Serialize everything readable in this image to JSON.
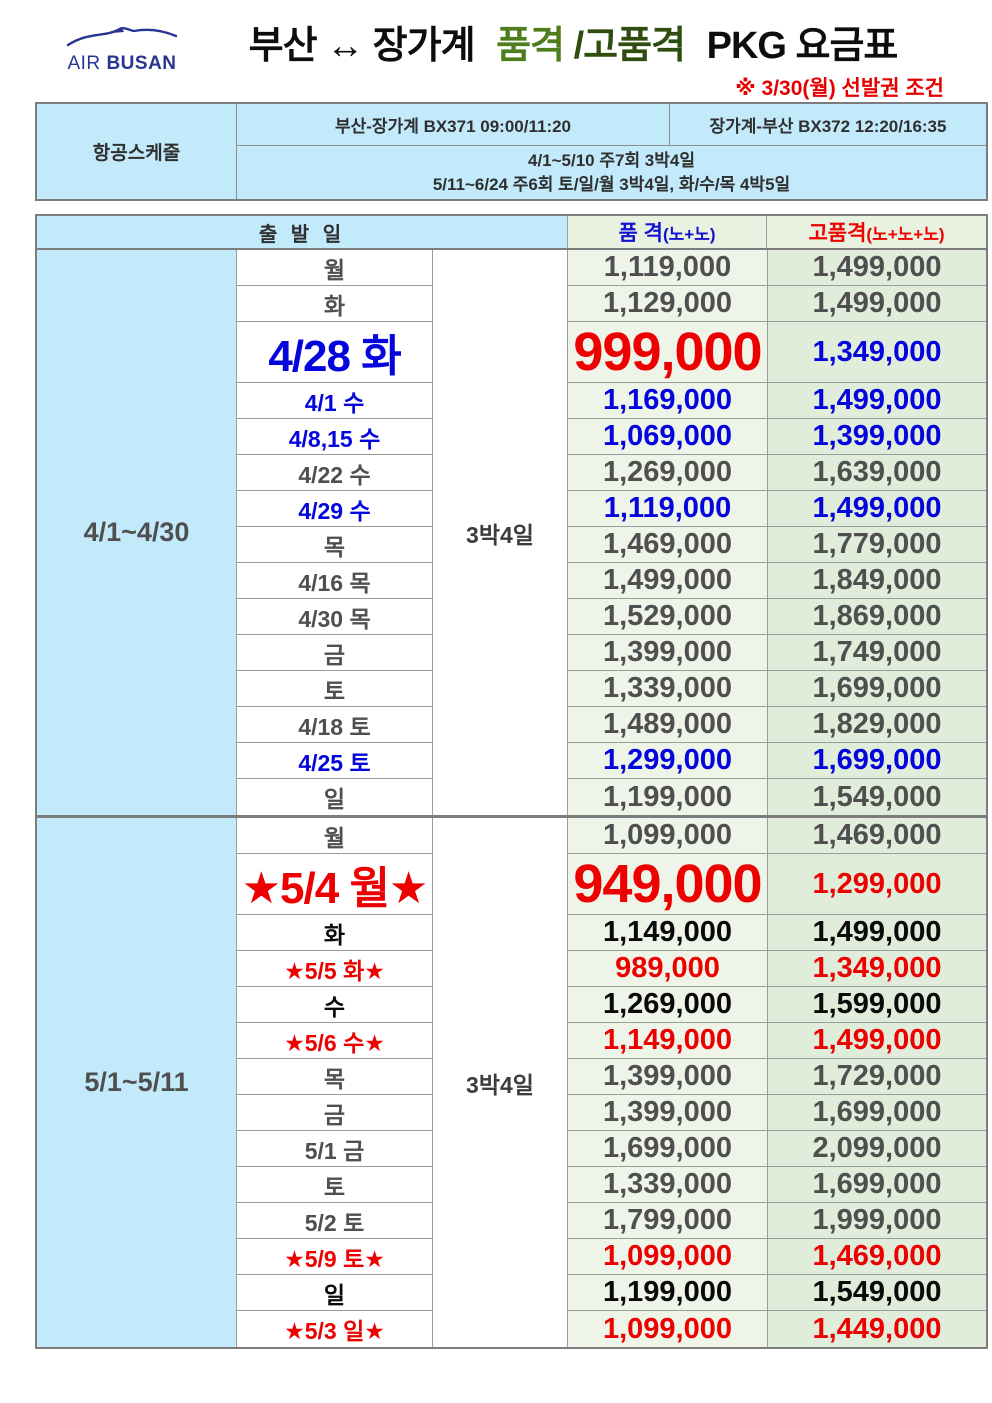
{
  "header": {
    "logo_air": "AIR",
    "logo_busan": "BUSAN",
    "title_city": "부산 ↔ 장가계",
    "title_green": "품격",
    "title_dark": "/고품격",
    "title_tail": "PKG 요금표",
    "note": "※ 3/30(월) 선발권 조건"
  },
  "schedule": {
    "label": "항공스케줄",
    "outbound": "부산-장가계 BX371 09:00/11:20",
    "inbound": "장가계-부산 BX372 12:20/16:35",
    "line1": "4/1~5/10 주7회 3박4일",
    "line2": "5/11~6/24 주6회 토/일/월 3박4일, 화/수/목 4박5일"
  },
  "table": {
    "headers": {
      "departure": "출 발 일",
      "standard_main": "품 격",
      "standard_sub": "(노+노)",
      "premium_main": "고품격",
      "premium_sub": "(노+노+노)"
    },
    "sections": [
      {
        "period": "4/1~4/30",
        "duration": "3박4일",
        "rows": [
          {
            "day": "월",
            "standard": "1,119,000",
            "premium": "1,499,000",
            "style": "gray"
          },
          {
            "day": "화",
            "standard": "1,129,000",
            "premium": "1,499,000",
            "style": "gray"
          },
          {
            "day": "4/28 화",
            "standard": "999,000",
            "premium": "1,349,000",
            "style": "blue",
            "standard_style": "red",
            "big": true
          },
          {
            "day": "4/1 수",
            "standard": "1,169,000",
            "premium": "1,499,000",
            "style": "blue"
          },
          {
            "day": "4/8,15 수",
            "standard": "1,069,000",
            "premium": "1,399,000",
            "style": "blue"
          },
          {
            "day": "4/22 수",
            "standard": "1,269,000",
            "premium": "1,639,000",
            "style": "gray"
          },
          {
            "day": "4/29 수",
            "standard": "1,119,000",
            "premium": "1,499,000",
            "style": "blue"
          },
          {
            "day": "목",
            "standard": "1,469,000",
            "premium": "1,779,000",
            "style": "gray"
          },
          {
            "day": "4/16 목",
            "standard": "1,499,000",
            "premium": "1,849,000",
            "style": "gray"
          },
          {
            "day": "4/30 목",
            "standard": "1,529,000",
            "premium": "1,869,000",
            "style": "gray"
          },
          {
            "day": "금",
            "standard": "1,399,000",
            "premium": "1,749,000",
            "style": "gray"
          },
          {
            "day": "토",
            "standard": "1,339,000",
            "premium": "1,699,000",
            "style": "gray"
          },
          {
            "day": "4/18 토",
            "standard": "1,489,000",
            "premium": "1,829,000",
            "style": "gray"
          },
          {
            "day": "4/25 토",
            "standard": "1,299,000",
            "premium": "1,699,000",
            "style": "blue"
          },
          {
            "day": "일",
            "standard": "1,199,000",
            "premium": "1,549,000",
            "style": "gray"
          }
        ]
      },
      {
        "period": "5/1~5/11",
        "duration": "3박4일",
        "rows": [
          {
            "day": "월",
            "standard": "1,099,000",
            "premium": "1,469,000",
            "style": "gray"
          },
          {
            "day": "★5/4 월★",
            "standard": "949,000",
            "premium": "1,299,000",
            "style": "red",
            "big": true
          },
          {
            "day": "화",
            "standard": "1,149,000",
            "premium": "1,499,000",
            "style": "black"
          },
          {
            "day": "★5/5 화★",
            "standard": "989,000",
            "premium": "1,349,000",
            "style": "red"
          },
          {
            "day": "수",
            "standard": "1,269,000",
            "premium": "1,599,000",
            "style": "black"
          },
          {
            "day": "★5/6 수★",
            "standard": "1,149,000",
            "premium": "1,499,000",
            "style": "red"
          },
          {
            "day": "목",
            "standard": "1,399,000",
            "premium": "1,729,000",
            "style": "gray"
          },
          {
            "day": "금",
            "standard": "1,399,000",
            "premium": "1,699,000",
            "style": "gray"
          },
          {
            "day": "5/1 금",
            "standard": "1,699,000",
            "premium": "2,099,000",
            "style": "gray"
          },
          {
            "day": "토",
            "standard": "1,339,000",
            "premium": "1,699,000",
            "style": "gray"
          },
          {
            "day": "5/2 토",
            "standard": "1,799,000",
            "premium": "1,999,000",
            "style": "gray"
          },
          {
            "day": "★5/9 토★",
            "standard": "1,099,000",
            "premium": "1,469,000",
            "style": "red"
          },
          {
            "day": "일",
            "standard": "1,199,000",
            "premium": "1,549,000",
            "style": "black"
          },
          {
            "day": "★5/3 일★",
            "standard": "1,099,000",
            "premium": "1,449,000",
            "style": "red"
          }
        ]
      }
    ]
  },
  "colors": {
    "accent_blue": "#0404dd",
    "accent_red": "#ec0000",
    "text_gray": "#4f4f4f",
    "light_blue_bg": "#c2eafb",
    "green_bg_standard": "#eef4e7",
    "green_bg_premium": "#e0edda",
    "title_green": "#4e7d1e",
    "title_dark_green": "#2e4d0f"
  }
}
